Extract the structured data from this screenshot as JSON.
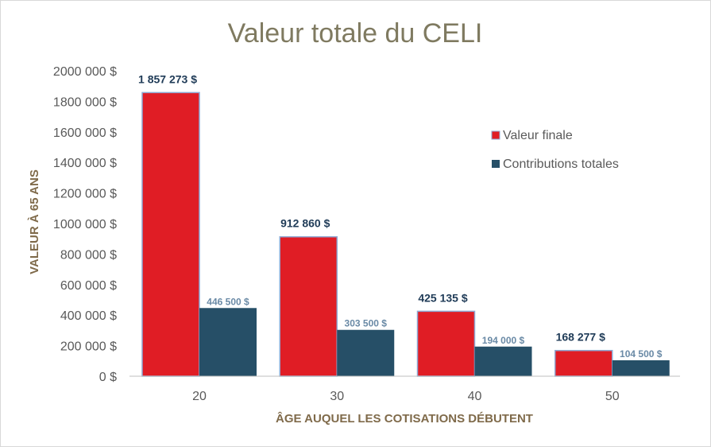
{
  "colors": {
    "title": "#7f7a60",
    "axis_text": "#595959",
    "axis_title": "#7f6a4a",
    "valeur_finale": "#e01d25",
    "contributions_totales": "#264f67",
    "bar_outline": "#8ea9d4",
    "label_big": "#1f3b57",
    "label_small": "#6a8aa6",
    "axis_line": "#bfbfbf"
  },
  "chart_data": {
    "type": "bar",
    "title": "Valeur totale du CELI",
    "xlabel": "ÂGE AUQUEL LES COTISATIONS DÉBUTENT",
    "ylabel": "VALEUR À 65 ANS",
    "categories": [
      "20",
      "30",
      "40",
      "50"
    ],
    "ylim": [
      0,
      2000000
    ],
    "y_ticks": [
      0,
      200000,
      400000,
      600000,
      800000,
      1000000,
      1200000,
      1400000,
      1600000,
      1800000,
      2000000
    ],
    "y_tick_labels": [
      "0 $",
      "200 000 $",
      "400 000 $",
      "600 000 $",
      "800 000 $",
      "1000 000 $",
      "1200 000 $",
      "1400 000 $",
      "1600 000 $",
      "1800 000 $",
      "2000 000 $"
    ],
    "grid": false,
    "legend_position": "top-right",
    "series": [
      {
        "name": "Valeur finale",
        "values": [
          1857273,
          912860,
          425135,
          168277
        ],
        "labels": [
          "1 857 273 $",
          "912 860 $",
          "425 135 $",
          "168 277 $"
        ]
      },
      {
        "name": "Contributions totales",
        "values": [
          446500,
          303500,
          194000,
          104500
        ],
        "labels": [
          "446 500 $",
          "303 500 $",
          "194 000 $",
          "104 500 $"
        ]
      }
    ]
  }
}
